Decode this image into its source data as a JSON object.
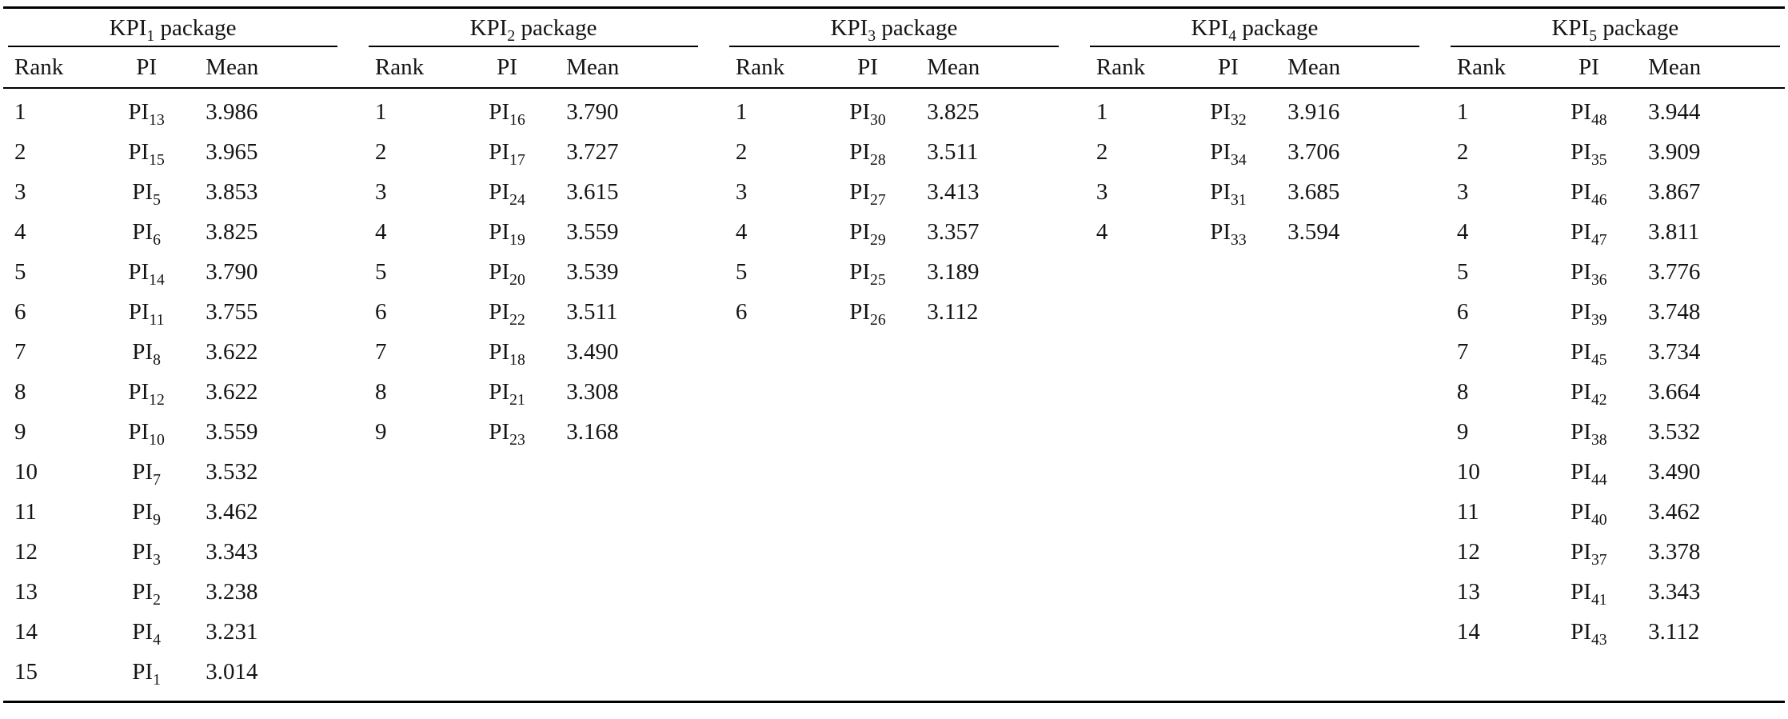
{
  "table": {
    "title_base": "KPI",
    "title_suffix": " package",
    "pi_label": "PI",
    "columns": [
      "Rank",
      "PI",
      "Mean"
    ],
    "packages": [
      {
        "title_sub": "1",
        "rows": [
          {
            "rank": "1",
            "pi_sub": "13",
            "mean": "3.986"
          },
          {
            "rank": "2",
            "pi_sub": "15",
            "mean": "3.965"
          },
          {
            "rank": "3",
            "pi_sub": "5",
            "mean": "3.853"
          },
          {
            "rank": "4",
            "pi_sub": "6",
            "mean": "3.825"
          },
          {
            "rank": "5",
            "pi_sub": "14",
            "mean": "3.790"
          },
          {
            "rank": "6",
            "pi_sub": "11",
            "mean": "3.755"
          },
          {
            "rank": "7",
            "pi_sub": "8",
            "mean": "3.622"
          },
          {
            "rank": "8",
            "pi_sub": "12",
            "mean": "3.622"
          },
          {
            "rank": "9",
            "pi_sub": "10",
            "mean": "3.559"
          },
          {
            "rank": "10",
            "pi_sub": "7",
            "mean": "3.532"
          },
          {
            "rank": "11",
            "pi_sub": "9",
            "mean": "3.462"
          },
          {
            "rank": "12",
            "pi_sub": "3",
            "mean": "3.343"
          },
          {
            "rank": "13",
            "pi_sub": "2",
            "mean": "3.238"
          },
          {
            "rank": "14",
            "pi_sub": "4",
            "mean": "3.231"
          },
          {
            "rank": "15",
            "pi_sub": "1",
            "mean": "3.014"
          }
        ]
      },
      {
        "title_sub": "2",
        "rows": [
          {
            "rank": "1",
            "pi_sub": "16",
            "mean": "3.790"
          },
          {
            "rank": "2",
            "pi_sub": "17",
            "mean": "3.727"
          },
          {
            "rank": "3",
            "pi_sub": "24",
            "mean": "3.615"
          },
          {
            "rank": "4",
            "pi_sub": "19",
            "mean": "3.559"
          },
          {
            "rank": "5",
            "pi_sub": "20",
            "mean": "3.539"
          },
          {
            "rank": "6",
            "pi_sub": "22",
            "mean": "3.511"
          },
          {
            "rank": "7",
            "pi_sub": "18",
            "mean": "3.490"
          },
          {
            "rank": "8",
            "pi_sub": "21",
            "mean": "3.308"
          },
          {
            "rank": "9",
            "pi_sub": "23",
            "mean": "3.168"
          }
        ]
      },
      {
        "title_sub": "3",
        "rows": [
          {
            "rank": "1",
            "pi_sub": "30",
            "mean": "3.825"
          },
          {
            "rank": "2",
            "pi_sub": "28",
            "mean": "3.511"
          },
          {
            "rank": "3",
            "pi_sub": "27",
            "mean": "3.413"
          },
          {
            "rank": "4",
            "pi_sub": "29",
            "mean": "3.357"
          },
          {
            "rank": "5",
            "pi_sub": "25",
            "mean": "3.189"
          },
          {
            "rank": "6",
            "pi_sub": "26",
            "mean": "3.112"
          }
        ]
      },
      {
        "title_sub": "4",
        "rows": [
          {
            "rank": "1",
            "pi_sub": "32",
            "mean": "3.916"
          },
          {
            "rank": "2",
            "pi_sub": "34",
            "mean": "3.706"
          },
          {
            "rank": "3",
            "pi_sub": "31",
            "mean": "3.685"
          },
          {
            "rank": "4",
            "pi_sub": "33",
            "mean": "3.594"
          }
        ]
      },
      {
        "title_sub": "5",
        "rows": [
          {
            "rank": "1",
            "pi_sub": "48",
            "mean": "3.944"
          },
          {
            "rank": "2",
            "pi_sub": "35",
            "mean": "3.909"
          },
          {
            "rank": "3",
            "pi_sub": "46",
            "mean": "3.867"
          },
          {
            "rank": "4",
            "pi_sub": "47",
            "mean": "3.811"
          },
          {
            "rank": "5",
            "pi_sub": "36",
            "mean": "3.776"
          },
          {
            "rank": "6",
            "pi_sub": "39",
            "mean": "3.748"
          },
          {
            "rank": "7",
            "pi_sub": "45",
            "mean": "3.734"
          },
          {
            "rank": "8",
            "pi_sub": "42",
            "mean": "3.664"
          },
          {
            "rank": "9",
            "pi_sub": "38",
            "mean": "3.532"
          },
          {
            "rank": "10",
            "pi_sub": "44",
            "mean": "3.490"
          },
          {
            "rank": "11",
            "pi_sub": "40",
            "mean": "3.462"
          },
          {
            "rank": "12",
            "pi_sub": "37",
            "mean": "3.378"
          },
          {
            "rank": "13",
            "pi_sub": "41",
            "mean": "3.343"
          },
          {
            "rank": "14",
            "pi_sub": "43",
            "mean": "3.112"
          }
        ]
      }
    ]
  }
}
